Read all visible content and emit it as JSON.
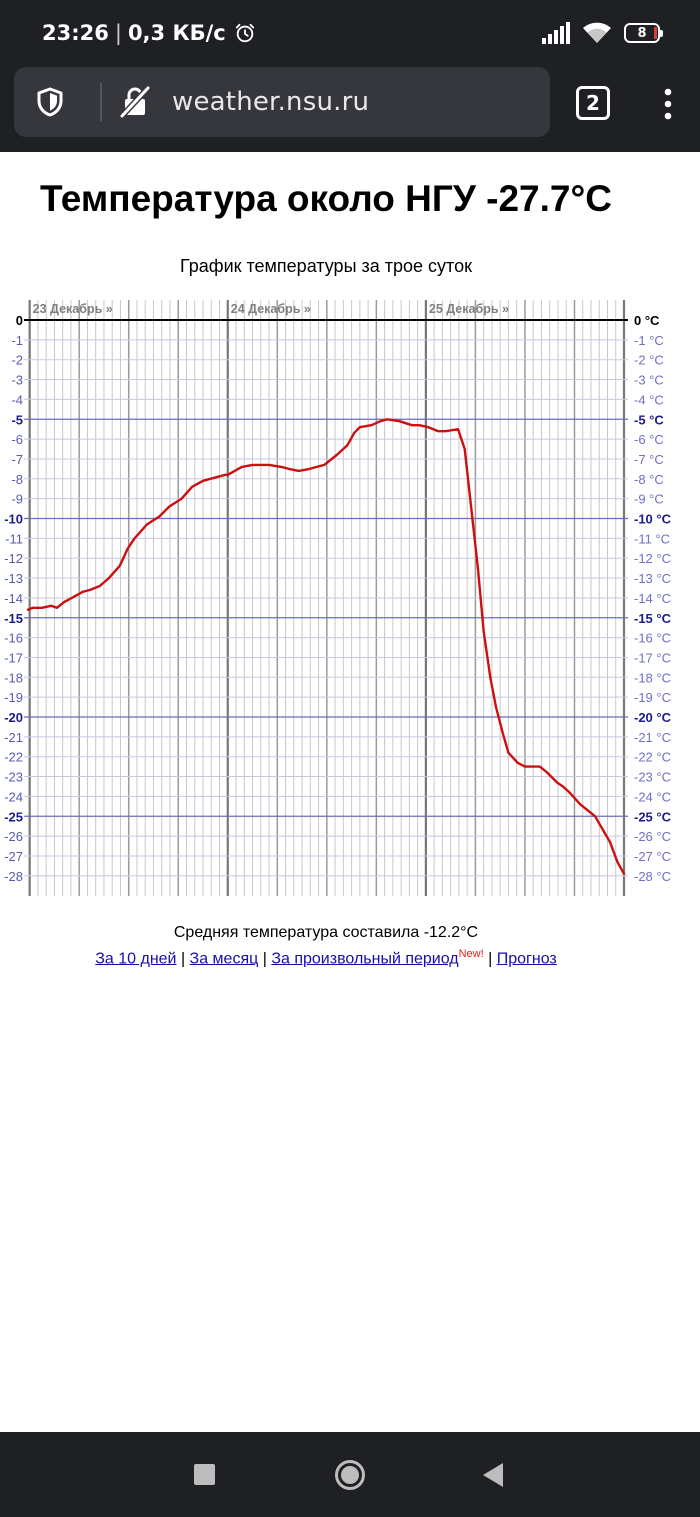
{
  "status_bar": {
    "time": "23:26",
    "speed": "0,3 КБ/с",
    "battery": "8",
    "icons": [
      "alarm-icon",
      "signal-icon",
      "wifi-icon",
      "battery-icon"
    ]
  },
  "browser": {
    "url": "weather.nsu.ru",
    "tab_count": "2",
    "icons": [
      "shield-icon",
      "no-lock-icon",
      "tabs-icon",
      "more-vert-icon"
    ]
  },
  "page": {
    "title": "Температура около НГУ -27.7°C",
    "average": "Средняя температура составила -12.2°C",
    "links": {
      "ten_days": "За 10 дней",
      "month": "За месяц",
      "custom": "За произвольный период",
      "new_badge": "New!",
      "forecast": "Прогноз",
      "sep": " | "
    }
  },
  "chart_data": {
    "type": "line",
    "title": "График температуры за трое суток",
    "day_labels": [
      "23 Декабрь »",
      "24 Декабрь »",
      "25 Декабрь »"
    ],
    "x_unit": "hours from 00:00 of 23 December",
    "xlim": [
      -0.2,
      72
    ],
    "ylim": [
      -28.8,
      0
    ],
    "y_ticks_left": [
      "0",
      "-1",
      "-2",
      "-3",
      "-4",
      "-5",
      "-6",
      "-7",
      "-8",
      "-9",
      "-10",
      "-11",
      "-12",
      "-13",
      "-14",
      "-15",
      "-16",
      "-17",
      "-18",
      "-19",
      "-20",
      "-21",
      "-22",
      "-23",
      "-24",
      "-25",
      "-26",
      "-27",
      "-28"
    ],
    "y_ticks_right": [
      "0 °C",
      "-1 °C",
      "-2 °C",
      "-3 °C",
      "-4 °C",
      "-5 °C",
      "-6 °C",
      "-7 °C",
      "-8 °C",
      "-9 °C",
      "-10 °C",
      "-11 °C",
      "-12 °C",
      "-13 °C",
      "-14 °C",
      "-15 °C",
      "-16 °C",
      "-17 °C",
      "-18 °C",
      "-19 °C",
      "-20 °C",
      "-21 °C",
      "-22 °C",
      "-23 °C",
      "-24 °C",
      "-25 °C",
      "-26 °C",
      "-27 °C",
      "-28 °C"
    ],
    "grid": true,
    "series": [
      {
        "color": "#cc1010",
        "x": [
          -0.2,
          0.4,
          1.5,
          2.6,
          3.3,
          4.2,
          5.1,
          6.4,
          7.3,
          8.5,
          9.6,
          10.9,
          11.9,
          12.7,
          14.2,
          15.7,
          16.2,
          16.9,
          18.4,
          19.7,
          21.0,
          23.7,
          24.0,
          25.7,
          27.0,
          28.1,
          29.0,
          30.5,
          31.4,
          32.6,
          33.9,
          35.7,
          37.2,
          38.5,
          39.3,
          40.0,
          41.4,
          42.5,
          43.3,
          44.8,
          46.3,
          47.2,
          48.3,
          49.5,
          50.4,
          51.9,
          52.7,
          53.5,
          54.3,
          55.0,
          55.8,
          56.5,
          57.3,
          58.0,
          59.1,
          60.0,
          61.8,
          62.7,
          63.9,
          64.6,
          65.4,
          66.7,
          68.5,
          70.3,
          71.2,
          72.0
        ],
        "y": [
          -14.6,
          -14.5,
          -14.5,
          -14.4,
          -14.5,
          -14.2,
          -14.0,
          -13.7,
          -13.6,
          -13.4,
          -13.0,
          -12.4,
          -11.5,
          -11.0,
          -10.3,
          -9.9,
          -9.7,
          -9.4,
          -9.0,
          -8.4,
          -8.1,
          -7.8,
          -7.8,
          -7.4,
          -7.3,
          -7.3,
          -7.3,
          -7.4,
          -7.5,
          -7.6,
          -7.5,
          -7.3,
          -6.8,
          -6.3,
          -5.7,
          -5.4,
          -5.3,
          -5.1,
          -5.0,
          -5.1,
          -5.3,
          -5.3,
          -5.4,
          -5.6,
          -5.6,
          -5.5,
          -6.5,
          -9.5,
          -12.5,
          -15.7,
          -18.0,
          -19.5,
          -20.8,
          -21.8,
          -22.3,
          -22.5,
          -22.5,
          -22.8,
          -23.3,
          -23.5,
          -23.8,
          -24.4,
          -25.0,
          -26.3,
          -27.3,
          -27.9
        ]
      }
    ]
  }
}
